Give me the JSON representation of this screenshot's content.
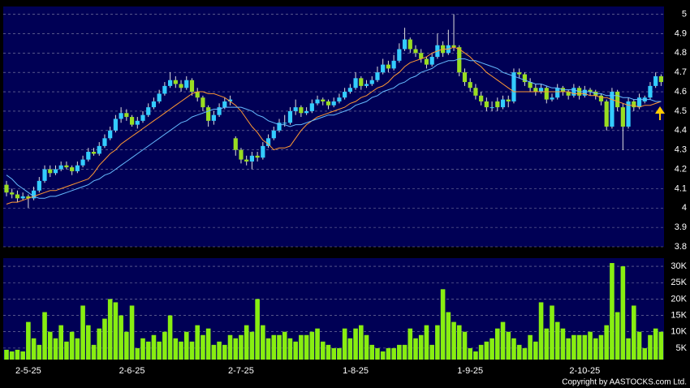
{
  "chart_data": [
    {
      "type": "candlestick",
      "up_color": "#33ccff",
      "down_color": "#99dd22",
      "ylim": [
        3.8,
        5.04
      ],
      "yticks": [
        3.8,
        3.9,
        4,
        4.1,
        4.2,
        4.3,
        4.4,
        4.5,
        4.6,
        4.7,
        4.8,
        4.9,
        5
      ],
      "grid": true,
      "candles": [
        [
          4.12,
          4.14,
          4.06,
          4.08
        ],
        [
          4.08,
          4.1,
          4.05,
          4.07
        ],
        [
          4.07,
          4.09,
          4.03,
          4.05
        ],
        [
          4.05,
          4.08,
          4.04,
          4.06
        ],
        [
          4.06,
          4.07,
          4.0,
          4.05
        ],
        [
          4.05,
          4.11,
          4.04,
          4.09
        ],
        [
          4.09,
          4.16,
          4.08,
          4.14
        ],
        [
          4.14,
          4.22,
          4.13,
          4.2
        ],
        [
          4.2,
          4.22,
          4.16,
          4.18
        ],
        [
          4.18,
          4.22,
          4.17,
          4.2
        ],
        [
          4.2,
          4.24,
          4.19,
          4.22
        ],
        [
          4.22,
          4.24,
          4.2,
          4.21
        ],
        [
          4.21,
          4.22,
          4.17,
          4.19
        ],
        [
          4.19,
          4.24,
          4.18,
          4.22
        ],
        [
          4.22,
          4.27,
          4.21,
          4.25
        ],
        [
          4.25,
          4.31,
          4.24,
          4.29
        ],
        [
          4.29,
          4.31,
          4.27,
          4.28
        ],
        [
          4.28,
          4.34,
          4.27,
          4.32
        ],
        [
          4.32,
          4.38,
          4.31,
          4.36
        ],
        [
          4.36,
          4.42,
          4.35,
          4.4
        ],
        [
          4.4,
          4.48,
          4.39,
          4.46
        ],
        [
          4.46,
          4.52,
          4.44,
          4.49
        ],
        [
          4.49,
          4.51,
          4.45,
          4.47
        ],
        [
          4.47,
          4.48,
          4.42,
          4.43
        ],
        [
          4.43,
          4.47,
          4.41,
          4.45
        ],
        [
          4.45,
          4.5,
          4.44,
          4.48
        ],
        [
          4.48,
          4.54,
          4.47,
          4.52
        ],
        [
          4.52,
          4.57,
          4.51,
          4.55
        ],
        [
          4.55,
          4.61,
          4.54,
          4.59
        ],
        [
          4.59,
          4.65,
          4.58,
          4.63
        ],
        [
          4.63,
          4.7,
          4.62,
          4.66
        ],
        [
          4.66,
          4.68,
          4.62,
          4.64
        ],
        [
          4.64,
          4.66,
          4.6,
          4.62
        ],
        [
          4.62,
          4.68,
          4.61,
          4.66
        ],
        [
          4.66,
          4.67,
          4.58,
          4.6
        ],
        [
          4.6,
          4.62,
          4.55,
          4.57
        ],
        [
          4.57,
          4.58,
          4.5,
          4.52
        ],
        [
          4.52,
          4.53,
          4.42,
          4.45
        ],
        [
          4.45,
          4.5,
          4.43,
          4.48
        ],
        [
          4.48,
          4.54,
          4.47,
          4.52
        ],
        [
          4.52,
          4.57,
          4.51,
          4.55
        ],
        [
          4.55,
          4.58,
          4.53,
          4.56
        ],
        [
          4.36,
          4.37,
          4.27,
          4.3
        ],
        [
          4.3,
          4.31,
          4.23,
          4.25
        ],
        [
          4.25,
          4.27,
          4.22,
          4.24
        ],
        [
          4.24,
          4.29,
          4.2,
          4.27
        ],
        [
          4.27,
          4.29,
          4.24,
          4.26
        ],
        [
          4.26,
          4.34,
          4.25,
          4.32
        ],
        [
          4.32,
          4.38,
          4.31,
          4.36
        ],
        [
          4.36,
          4.42,
          4.35,
          4.4
        ],
        [
          4.4,
          4.46,
          4.39,
          4.44
        ],
        [
          4.44,
          4.48,
          4.42,
          4.44
        ],
        [
          4.44,
          4.52,
          4.43,
          4.5
        ],
        [
          4.5,
          4.56,
          4.48,
          4.52
        ],
        [
          4.52,
          4.53,
          4.47,
          4.49
        ],
        [
          4.49,
          4.52,
          4.48,
          4.5
        ],
        [
          4.5,
          4.56,
          4.49,
          4.54
        ],
        [
          4.54,
          4.58,
          4.53,
          4.56
        ],
        [
          4.56,
          4.57,
          4.53,
          4.55
        ],
        [
          4.55,
          4.56,
          4.51,
          4.53
        ],
        [
          4.53,
          4.57,
          4.52,
          4.55
        ],
        [
          4.55,
          4.59,
          4.54,
          4.57
        ],
        [
          4.57,
          4.62,
          4.56,
          4.6
        ],
        [
          4.6,
          4.64,
          4.59,
          4.62
        ],
        [
          4.62,
          4.7,
          4.61,
          4.67
        ],
        [
          4.67,
          4.68,
          4.61,
          4.63
        ],
        [
          4.63,
          4.66,
          4.62,
          4.64
        ],
        [
          4.64,
          4.68,
          4.63,
          4.66
        ],
        [
          4.66,
          4.73,
          4.65,
          4.7
        ],
        [
          4.7,
          4.77,
          4.69,
          4.74
        ],
        [
          4.74,
          4.76,
          4.7,
          4.72
        ],
        [
          4.72,
          4.79,
          4.71,
          4.76
        ],
        [
          4.76,
          4.85,
          4.75,
          4.82
        ],
        [
          4.82,
          4.93,
          4.81,
          4.87
        ],
        [
          4.87,
          4.88,
          4.8,
          4.82
        ],
        [
          4.82,
          4.84,
          4.78,
          4.8
        ],
        [
          4.8,
          4.82,
          4.75,
          4.77
        ],
        [
          4.77,
          4.78,
          4.72,
          4.74
        ],
        [
          4.74,
          4.8,
          4.73,
          4.78
        ],
        [
          4.78,
          4.9,
          4.77,
          4.84
        ],
        [
          4.84,
          4.86,
          4.78,
          4.8
        ],
        [
          4.8,
          4.92,
          4.79,
          4.84
        ],
        [
          4.84,
          5.0,
          4.81,
          4.83
        ],
        [
          4.83,
          4.84,
          4.68,
          4.7
        ],
        [
          4.7,
          4.72,
          4.63,
          4.65
        ],
        [
          4.65,
          4.67,
          4.6,
          4.62
        ],
        [
          4.62,
          4.64,
          4.56,
          4.58
        ],
        [
          4.58,
          4.6,
          4.53,
          4.55
        ],
        [
          4.55,
          4.57,
          4.5,
          4.52
        ],
        [
          4.52,
          4.55,
          4.5,
          4.52
        ],
        [
          4.55,
          4.57,
          4.5,
          4.52
        ],
        [
          4.52,
          4.58,
          4.51,
          4.56
        ],
        [
          4.56,
          4.58,
          4.52,
          4.55
        ],
        [
          4.55,
          4.72,
          4.54,
          4.7
        ],
        [
          4.7,
          4.72,
          4.67,
          4.69
        ],
        [
          4.69,
          4.7,
          4.63,
          4.65
        ],
        [
          4.65,
          4.67,
          4.6,
          4.62
        ],
        [
          4.62,
          4.64,
          4.58,
          4.6
        ],
        [
          4.6,
          4.64,
          4.59,
          4.62
        ],
        [
          4.62,
          4.63,
          4.54,
          4.56
        ],
        [
          4.56,
          4.59,
          4.55,
          4.57
        ],
        [
          4.57,
          4.64,
          4.56,
          4.62
        ],
        [
          4.62,
          4.63,
          4.58,
          4.6
        ],
        [
          4.6,
          4.61,
          4.56,
          4.58
        ],
        [
          4.58,
          4.64,
          4.57,
          4.62
        ],
        [
          4.62,
          4.63,
          4.56,
          4.58
        ],
        [
          4.58,
          4.63,
          4.57,
          4.61
        ],
        [
          4.61,
          4.62,
          4.58,
          4.6
        ],
        [
          4.6,
          4.61,
          4.56,
          4.58
        ],
        [
          4.58,
          4.59,
          4.53,
          4.55
        ],
        [
          4.55,
          4.56,
          4.4,
          4.42
        ],
        [
          4.42,
          4.62,
          4.41,
          4.6
        ],
        [
          4.6,
          4.61,
          4.5,
          4.52
        ],
        [
          4.52,
          4.54,
          4.3,
          4.42
        ],
        [
          4.42,
          4.57,
          4.41,
          4.55
        ],
        [
          4.55,
          4.56,
          4.5,
          4.52
        ],
        [
          4.52,
          4.59,
          4.51,
          4.57
        ],
        [
          4.55,
          4.58,
          4.54,
          4.57
        ],
        [
          4.57,
          4.65,
          4.56,
          4.63
        ],
        [
          4.63,
          4.7,
          4.62,
          4.68
        ],
        [
          4.68,
          4.69,
          4.63,
          4.65
        ]
      ],
      "lines": [
        {
          "color": "#ff9933",
          "values": [
            4.02,
            4.03,
            4.03,
            4.04,
            4.05,
            4.06,
            4.07,
            4.08,
            4.09,
            4.09,
            4.1,
            4.11,
            4.12,
            4.13,
            4.14,
            4.15,
            4.18,
            4.22,
            4.25,
            4.28,
            4.3,
            4.33,
            4.35,
            4.37,
            4.39,
            4.41,
            4.43,
            4.45,
            4.47,
            4.49,
            4.51,
            4.53,
            4.55,
            4.57,
            4.59,
            4.6,
            4.6,
            4.59,
            4.59,
            4.58,
            4.57,
            4.55,
            4.53,
            4.5,
            4.46,
            4.42,
            4.39,
            4.35,
            4.33,
            4.3,
            4.31,
            4.31,
            4.32,
            4.36,
            4.4,
            4.43,
            4.45,
            4.47,
            4.48,
            4.49,
            4.5,
            4.51,
            4.52,
            4.54,
            4.55,
            4.57,
            4.58,
            4.6,
            4.62,
            4.63,
            4.65,
            4.68,
            4.7,
            4.73,
            4.75,
            4.76,
            4.77,
            4.78,
            4.8,
            4.81,
            4.82,
            4.82,
            4.83,
            4.82,
            4.8,
            4.78,
            4.75,
            4.73,
            4.7,
            4.68,
            4.66,
            4.64,
            4.62,
            4.6,
            4.6,
            4.6,
            4.6,
            4.6,
            4.6,
            4.6,
            4.6,
            4.6,
            4.6,
            4.6,
            4.59,
            4.59,
            4.59,
            4.58,
            4.58,
            4.57,
            4.57,
            4.56,
            4.55,
            4.54,
            4.53,
            4.53,
            4.52,
            4.53,
            4.53,
            4.54,
            4.55
          ]
        },
        {
          "color": "#66bbff",
          "values": [
            4.17,
            4.15,
            4.12,
            4.1,
            4.08,
            4.06,
            4.05,
            4.05,
            4.06,
            4.06,
            4.07,
            4.08,
            4.09,
            4.1,
            4.11,
            4.12,
            4.14,
            4.15,
            4.17,
            4.18,
            4.2,
            4.22,
            4.24,
            4.26,
            4.28,
            4.3,
            4.32,
            4.34,
            4.36,
            4.38,
            4.4,
            4.42,
            4.44,
            4.45,
            4.47,
            4.48,
            4.49,
            4.5,
            4.51,
            4.51,
            4.52,
            4.52,
            4.52,
            4.52,
            4.51,
            4.5,
            4.48,
            4.47,
            4.45,
            4.44,
            4.43,
            4.43,
            4.42,
            4.43,
            4.43,
            4.44,
            4.45,
            4.46,
            4.47,
            4.48,
            4.48,
            4.49,
            4.5,
            4.51,
            4.53,
            4.54,
            4.55,
            4.57,
            4.58,
            4.6,
            4.61,
            4.62,
            4.64,
            4.65,
            4.67,
            4.68,
            4.7,
            4.71,
            4.72,
            4.74,
            4.75,
            4.76,
            4.76,
            4.77,
            4.77,
            4.76,
            4.76,
            4.75,
            4.74,
            4.73,
            4.72,
            4.7,
            4.69,
            4.68,
            4.67,
            4.66,
            4.65,
            4.64,
            4.64,
            4.63,
            4.62,
            4.62,
            4.61,
            4.61,
            4.61,
            4.6,
            4.6,
            4.6,
            4.59,
            4.59,
            4.58,
            4.58,
            4.58,
            4.57,
            4.57,
            4.56,
            4.56,
            4.56,
            4.56,
            4.55,
            4.55
          ]
        }
      ]
    },
    {
      "type": "bar",
      "color": "#88ee11",
      "ylim": [
        1500,
        32500
      ],
      "yticks": [
        {
          "value": 5000,
          "label": "5K"
        },
        {
          "value": 10000,
          "label": "10K"
        },
        {
          "value": 15000,
          "label": "15K"
        },
        {
          "value": 20000,
          "label": "20K"
        },
        {
          "value": 25000,
          "label": "25K"
        },
        {
          "value": 30000,
          "label": "30K"
        }
      ],
      "grid": true,
      "categories": [
        null,
        null,
        null,
        null,
        "2-5-25",
        null,
        null,
        null,
        null,
        null,
        null,
        null,
        null,
        null,
        null,
        null,
        null,
        null,
        null,
        null,
        null,
        null,
        null,
        "2-6-25",
        null,
        null,
        null,
        null,
        null,
        null,
        null,
        null,
        null,
        null,
        null,
        null,
        null,
        null,
        null,
        null,
        null,
        null,
        null,
        "2-7-25",
        null,
        null,
        null,
        null,
        null,
        null,
        null,
        null,
        null,
        null,
        null,
        null,
        null,
        null,
        null,
        null,
        null,
        null,
        null,
        null,
        "1-8-25",
        null,
        null,
        null,
        null,
        null,
        null,
        null,
        null,
        null,
        null,
        null,
        null,
        null,
        null,
        null,
        null,
        null,
        null,
        null,
        null,
        "1-9-25",
        null,
        null,
        null,
        null,
        null,
        null,
        null,
        null,
        null,
        null,
        null,
        null,
        null,
        null,
        null,
        null,
        null,
        null,
        null,
        null,
        "2-10-25",
        null,
        null,
        null,
        null,
        null,
        null,
        null,
        null,
        null,
        null,
        null,
        null,
        null,
        null
      ],
      "values": [
        4500,
        4000,
        4500,
        4000,
        13000,
        8000,
        6000,
        16000,
        10000,
        8000,
        12000,
        7000,
        10000,
        8000,
        18000,
        12000,
        6000,
        11000,
        14000,
        20000,
        19000,
        15000,
        10000,
        18000,
        5000,
        8000,
        7000,
        9000,
        7000,
        10000,
        15000,
        8000,
        7000,
        10000,
        7000,
        12000,
        9000,
        11000,
        6000,
        7000,
        6000,
        9000,
        8000,
        9000,
        12000,
        10000,
        20000,
        12000,
        8000,
        9000,
        9000,
        10000,
        8000,
        7000,
        9000,
        9000,
        10000,
        11000,
        7000,
        6000,
        5000,
        5000,
        11000,
        8000,
        11000,
        12000,
        9000,
        6000,
        5000,
        4000,
        5000,
        5000,
        6000,
        6000,
        11000,
        8000,
        9000,
        12000,
        6000,
        12000,
        23000,
        16000,
        13000,
        12000,
        10000,
        5000,
        4000,
        6000,
        7000,
        8000,
        11000,
        13000,
        10000,
        8000,
        6000,
        5000,
        9000,
        7000,
        19000,
        11000,
        18000,
        13000,
        11000,
        8000,
        9000,
        9000,
        9000,
        10000,
        8000,
        9000,
        12000,
        31000,
        16000,
        30000,
        8000,
        18000,
        10000,
        5000,
        9000,
        11000,
        10000
      ]
    }
  ],
  "footer": "Copyright by AASTOCKS.com Ltd."
}
